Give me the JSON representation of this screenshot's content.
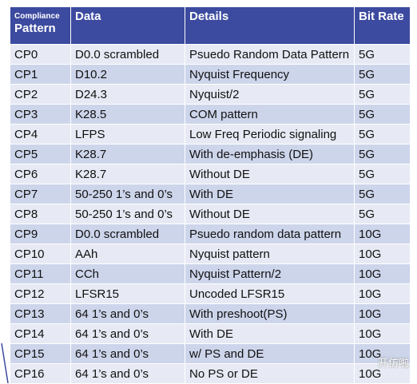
{
  "table": {
    "header": [
      {
        "top": "Compliance",
        "bottom": "Pattern"
      },
      "Data",
      "Details",
      "Bit Rate"
    ],
    "rows": [
      [
        "CP0",
        "D0.0 scrambled",
        "Psuedo Random Data Pattern",
        "5G"
      ],
      [
        "CP1",
        "D10.2",
        "Nyquist Frequency",
        "5G"
      ],
      [
        "CP2",
        "D24.3",
        "Nyquist/2",
        "5G"
      ],
      [
        "CP3",
        "K28.5",
        "COM pattern",
        "5G"
      ],
      [
        "CP4",
        "LFPS",
        "Low Freq Periodic signaling",
        "5G"
      ],
      [
        "CP5",
        "K28.7",
        "With de-emphasis (DE)",
        "5G"
      ],
      [
        "CP6",
        "K28.7",
        "Without DE",
        "5G"
      ],
      [
        "CP7",
        "50-250 1’s and 0’s",
        "With DE",
        "5G"
      ],
      [
        "CP8",
        "50-250 1’s and 0’s",
        "Without DE",
        "5G"
      ],
      [
        "CP9",
        "D0.0 scrambled",
        "Psuedo random data pattern",
        "10G"
      ],
      [
        "CP10",
        "AAh",
        "Nyquist pattern",
        "10G"
      ],
      [
        "CP11",
        "CCh",
        "Nyquist Pattern/2",
        "10G"
      ],
      [
        "CP12",
        "LFSR15",
        "Uncoded LFSR15",
        "10G"
      ],
      [
        "CP13",
        "64 1’s and 0’s",
        "With preshoot(PS)",
        "10G"
      ],
      [
        "CP14",
        "64 1’s and 0’s",
        "With DE",
        "10G"
      ],
      [
        "CP15",
        "64 1’s and 0’s",
        "w/ PS and DE",
        "10G"
      ],
      [
        "CP16",
        "64 1’s and 0’s",
        "No PS or DE",
        "10G"
      ]
    ]
  },
  "watermark": {
    "text": "开仿啦"
  }
}
